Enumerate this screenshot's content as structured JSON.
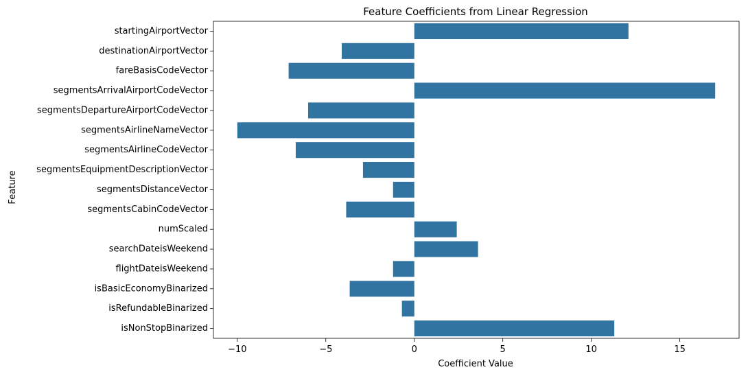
{
  "chart_data": {
    "type": "bar",
    "orientation": "horizontal",
    "title": "Feature Coefficients from Linear Regression",
    "xlabel": "Coefficient Value",
    "ylabel": "Feature",
    "xlim": [
      -11.35,
      18.35
    ],
    "xticks": [
      -10,
      -5,
      0,
      5,
      10,
      15
    ],
    "xtick_labels": [
      "−10",
      "−5",
      "0",
      "5",
      "10",
      "15"
    ],
    "grid": false,
    "bar_color": "#3274a1",
    "categories": [
      "startingAirportVector",
      "destinationAirportVector",
      "fareBasisCodeVector",
      "segmentsArrivalAirportCodeVector",
      "segmentsDepartureAirportCodeVector",
      "segmentsAirlineNameVector",
      "segmentsAirlineCodeVector",
      "segmentsEquipmentDescriptionVector",
      "segmentsDistanceVector",
      "segmentsCabinCodeVector",
      "numScaled",
      "searchDateisWeekend",
      "flightDateisWeekend",
      "isBasicEconomyBinarized",
      "isRefundableBinarized",
      "isNonStopBinarized"
    ],
    "values": [
      12.1,
      -4.1,
      -7.1,
      17.0,
      -6.0,
      -10.0,
      -6.7,
      -2.9,
      -1.2,
      -3.85,
      2.4,
      3.6,
      -1.2,
      -3.65,
      -0.7,
      11.3
    ]
  }
}
